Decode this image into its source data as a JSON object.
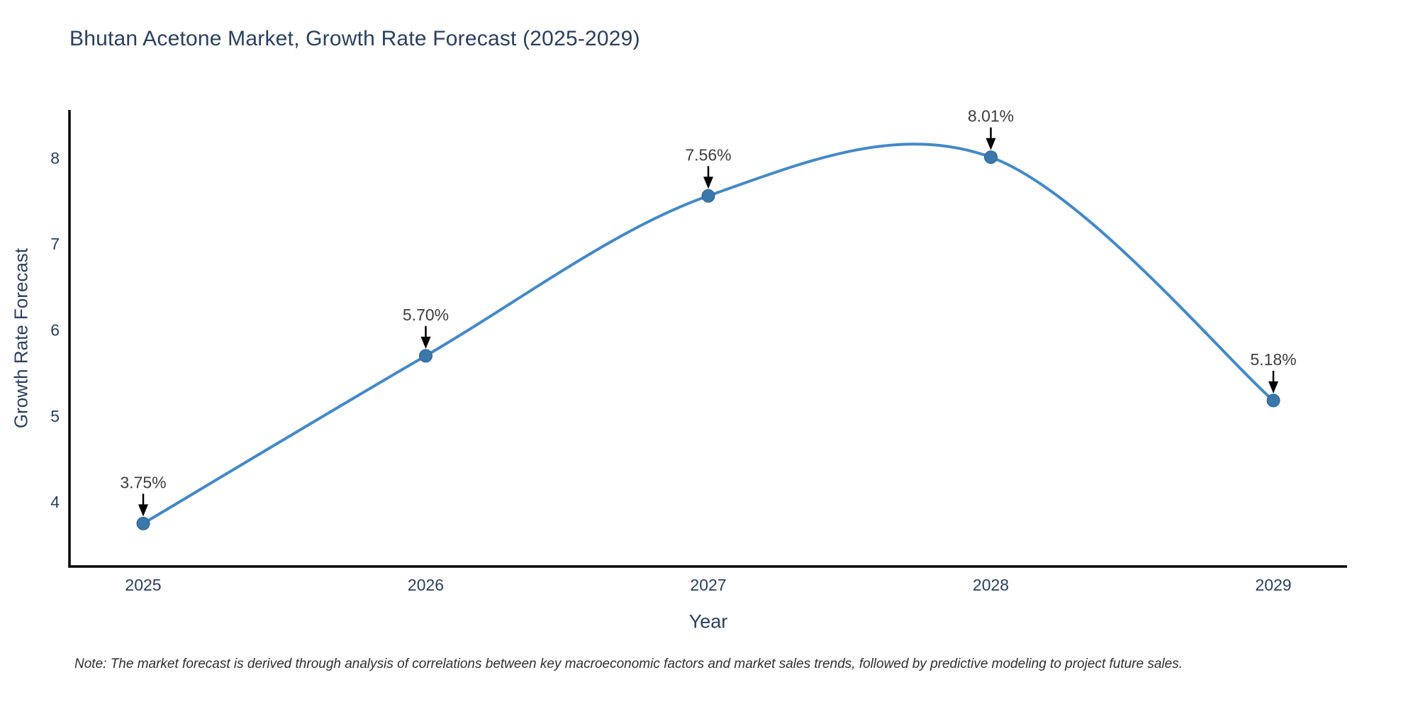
{
  "page": {
    "note": "Note: The market forecast is derived through analysis of correlations between key macroeconomic factors and market sales trends, followed by predictive modeling to project future sales."
  },
  "chart_data": {
    "type": "line",
    "title": "Bhutan Acetone Market, Growth Rate Forecast (2025-2029)",
    "xlabel": "Year",
    "ylabel": "Growth Rate Forecast",
    "categories": [
      "2025",
      "2026",
      "2027",
      "2028",
      "2029"
    ],
    "values": [
      3.75,
      5.7,
      7.56,
      8.01,
      5.18
    ],
    "point_labels": [
      "3.75%",
      "5.70%",
      "7.56%",
      "8.01%",
      "5.18%"
    ],
    "yticks": [
      4,
      5,
      6,
      7,
      8
    ],
    "ylim": [
      3.25,
      8.56
    ],
    "line_shape": "spline",
    "grid": false,
    "legend": "none",
    "colors": {
      "line": "#4389c8",
      "marker": "#3a78ab",
      "marker_edge": "#2e608f",
      "axis": "#000000",
      "tick_text": "#2a3f5f",
      "annotation_text": "#3d3d3d",
      "arrow": "#000000"
    }
  }
}
